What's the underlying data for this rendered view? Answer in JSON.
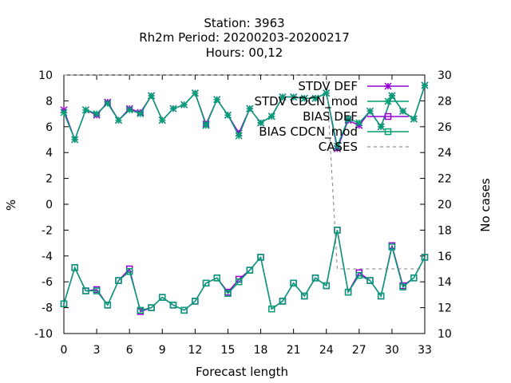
{
  "chart_data": {
    "type": "line",
    "title_lines": [
      "Station:     3963",
      "Rh2m   Period: 20200203-20200217",
      "Hours:  00,12"
    ],
    "xlabel": "Forecast length",
    "ylabel": "%",
    "y2label": "No cases",
    "xlim": [
      0,
      33
    ],
    "ylim": [
      -10,
      10
    ],
    "y2lim": [
      10,
      30
    ],
    "xticks": [
      0,
      3,
      6,
      9,
      12,
      15,
      18,
      21,
      24,
      27,
      30,
      33
    ],
    "yticks": [
      -10,
      -8,
      -6,
      -4,
      -2,
      0,
      2,
      4,
      6,
      8,
      10
    ],
    "y2ticks": [
      10,
      12,
      14,
      16,
      18,
      20,
      22,
      24,
      26,
      28,
      30
    ],
    "x": [
      0,
      1,
      2,
      3,
      4,
      5,
      6,
      7,
      8,
      9,
      10,
      11,
      12,
      13,
      14,
      15,
      16,
      17,
      18,
      19,
      20,
      21,
      22,
      23,
      24,
      25,
      26,
      27,
      28,
      29,
      30,
      31,
      32,
      33
    ],
    "legend_position": "top-right",
    "series": [
      {
        "name": "STDV DEF",
        "color": "#9400d3",
        "marker": "star",
        "axis": "y1",
        "values": [
          7.3,
          5.0,
          7.3,
          6.9,
          7.9,
          6.5,
          7.4,
          7.1,
          8.4,
          6.5,
          7.4,
          7.7,
          8.6,
          6.2,
          8.1,
          6.9,
          5.5,
          7.4,
          6.3,
          6.8,
          8.3,
          8.3,
          8.2,
          8.2,
          8.6,
          4.3,
          6.5,
          6.1,
          7.2,
          6.0,
          8.4,
          7.2,
          6.6,
          9.2
        ]
      },
      {
        "name": "STDV CDCN_mod",
        "color": "#009e73",
        "marker": "star",
        "axis": "y1",
        "values": [
          7.1,
          5.0,
          7.3,
          7.0,
          7.8,
          6.5,
          7.3,
          7.0,
          8.4,
          6.5,
          7.4,
          7.7,
          8.6,
          6.1,
          8.1,
          6.9,
          5.3,
          7.4,
          6.3,
          6.8,
          8.3,
          8.3,
          8.2,
          8.2,
          8.6,
          4.5,
          6.6,
          6.3,
          7.2,
          6.0,
          8.4,
          7.2,
          6.6,
          9.2
        ]
      },
      {
        "name": "BIAS DEF",
        "color": "#9400d3",
        "marker": "square",
        "axis": "y1",
        "values": [
          -7.7,
          -4.9,
          -6.7,
          -6.6,
          -7.8,
          -5.9,
          -5.0,
          -8.3,
          -8.0,
          -7.2,
          -7.8,
          -8.2,
          -7.5,
          -6.1,
          -5.7,
          -6.8,
          -5.8,
          -5.1,
          -4.1,
          -8.1,
          -7.5,
          -6.1,
          -7.1,
          -5.7,
          -6.3,
          -2.0,
          -6.8,
          -5.3,
          -5.9,
          -7.1,
          -3.2,
          -6.3,
          -5.7,
          -4.1
        ]
      },
      {
        "name": "BIAS CDCN_mod",
        "color": "#009e73",
        "marker": "square",
        "axis": "y1",
        "values": [
          -7.7,
          -4.9,
          -6.7,
          -6.7,
          -7.8,
          -5.9,
          -5.2,
          -8.2,
          -8.0,
          -7.2,
          -7.8,
          -8.2,
          -7.5,
          -6.1,
          -5.7,
          -6.9,
          -6.0,
          -5.1,
          -4.1,
          -8.1,
          -7.5,
          -6.1,
          -7.1,
          -5.7,
          -6.3,
          -2.0,
          -6.8,
          -5.5,
          -5.9,
          -7.1,
          -3.3,
          -6.4,
          -5.7,
          -4.1
        ]
      },
      {
        "name": "CASES",
        "color": "#808080",
        "dash": true,
        "axis": "y2",
        "values": [
          30,
          30,
          30,
          30,
          30,
          30,
          30,
          30,
          30,
          30,
          30,
          30,
          30,
          30,
          30,
          30,
          30,
          30,
          30,
          30,
          30,
          30,
          30,
          30,
          30,
          15,
          15,
          15,
          15,
          15,
          15,
          15,
          15,
          15
        ]
      }
    ]
  }
}
